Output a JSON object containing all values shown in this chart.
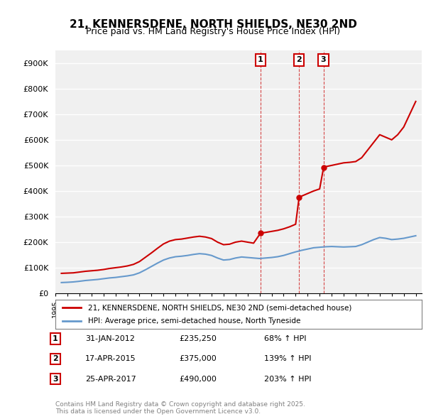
{
  "title": "21, KENNERSDENE, NORTH SHIELDS, NE30 2ND",
  "subtitle": "Price paid vs. HM Land Registry's House Price Index (HPI)",
  "xlabel": "",
  "ylabel": "",
  "ylim": [
    0,
    950000
  ],
  "yticks": [
    0,
    100000,
    200000,
    300000,
    400000,
    500000,
    600000,
    700000,
    800000,
    900000
  ],
  "ytick_labels": [
    "£0",
    "£100K",
    "£200K",
    "£300K",
    "£400K",
    "£500K",
    "£600K",
    "£700K",
    "£800K",
    "£900K"
  ],
  "xlim_start": 1995.0,
  "xlim_end": 2025.5,
  "background_color": "#ffffff",
  "plot_bg_color": "#f0f0f0",
  "grid_color": "#ffffff",
  "purchases": [
    {
      "num": 1,
      "date_label": "31-JAN-2012",
      "year": 2012.08,
      "price": 235250,
      "pct": "68%",
      "marker_y": 235250
    },
    {
      "num": 2,
      "date_label": "17-APR-2015",
      "year": 2015.29,
      "price": 375000,
      "pct": "139%",
      "marker_y": 375000
    },
    {
      "num": 3,
      "date_label": "25-APR-2017",
      "year": 2017.32,
      "price": 490000,
      "pct": "203%",
      "marker_y": 490000
    }
  ],
  "property_color": "#cc0000",
  "hpi_color": "#6699cc",
  "legend_property_label": "21, KENNERSDENE, NORTH SHIELDS, NE30 2ND (semi-detached house)",
  "legend_hpi_label": "HPI: Average price, semi-detached house, North Tyneside",
  "footnote": "Contains HM Land Registry data © Crown copyright and database right 2025.\nThis data is licensed under the Open Government Licence v3.0.",
  "hpi_data": {
    "years": [
      1995.5,
      1996.0,
      1996.5,
      1997.0,
      1997.5,
      1998.0,
      1998.5,
      1999.0,
      1999.5,
      2000.0,
      2000.5,
      2001.0,
      2001.5,
      2002.0,
      2002.5,
      2003.0,
      2003.5,
      2004.0,
      2004.5,
      2005.0,
      2005.5,
      2006.0,
      2006.5,
      2007.0,
      2007.5,
      2008.0,
      2008.5,
      2009.0,
      2009.5,
      2010.0,
      2010.5,
      2011.0,
      2011.5,
      2012.0,
      2012.5,
      2013.0,
      2013.5,
      2014.0,
      2014.5,
      2015.0,
      2015.5,
      2016.0,
      2016.5,
      2017.0,
      2017.5,
      2018.0,
      2018.5,
      2019.0,
      2019.5,
      2020.0,
      2020.5,
      2021.0,
      2021.5,
      2022.0,
      2022.5,
      2023.0,
      2023.5,
      2024.0,
      2024.5,
      2025.0
    ],
    "values": [
      42000,
      43000,
      44500,
      47000,
      50000,
      52000,
      54000,
      57000,
      60000,
      62000,
      65000,
      68000,
      72000,
      80000,
      92000,
      105000,
      118000,
      130000,
      138000,
      143000,
      145000,
      148000,
      152000,
      155000,
      153000,
      148000,
      138000,
      130000,
      132000,
      138000,
      142000,
      140000,
      138000,
      136000,
      138000,
      140000,
      143000,
      148000,
      155000,
      162000,
      168000,
      173000,
      178000,
      180000,
      182000,
      183000,
      182000,
      181000,
      182000,
      183000,
      190000,
      200000,
      210000,
      218000,
      215000,
      210000,
      212000,
      215000,
      220000,
      225000
    ]
  },
  "property_data": {
    "years": [
      1995.5,
      1996.0,
      1996.5,
      1997.0,
      1997.5,
      1998.0,
      1998.5,
      1999.0,
      1999.5,
      2000.0,
      2000.5,
      2001.0,
      2001.5,
      2002.0,
      2002.5,
      2003.0,
      2003.5,
      2004.0,
      2004.5,
      2005.0,
      2005.5,
      2006.0,
      2006.5,
      2007.0,
      2007.5,
      2008.0,
      2008.5,
      2009.0,
      2009.5,
      2010.0,
      2010.5,
      2011.0,
      2011.5,
      2012.08,
      2012.5,
      2013.0,
      2013.5,
      2014.0,
      2014.5,
      2015.0,
      2015.29,
      2015.5,
      2016.0,
      2016.5,
      2017.0,
      2017.32,
      2017.5,
      2018.0,
      2018.5,
      2019.0,
      2019.5,
      2020.0,
      2020.5,
      2021.0,
      2021.5,
      2022.0,
      2022.5,
      2023.0,
      2023.5,
      2024.0,
      2024.5,
      2025.0
    ],
    "values": [
      78000,
      79000,
      80000,
      83000,
      86000,
      88000,
      90000,
      93000,
      97000,
      100000,
      103000,
      107000,
      113000,
      124000,
      141000,
      158000,
      176000,
      193000,
      204000,
      210000,
      212000,
      216000,
      220000,
      223000,
      220000,
      214000,
      200000,
      190000,
      192000,
      200000,
      204000,
      200000,
      196000,
      235250,
      238000,
      242000,
      246000,
      252000,
      260000,
      270000,
      375000,
      380000,
      390000,
      400000,
      408000,
      490000,
      495000,
      500000,
      505000,
      510000,
      512000,
      515000,
      530000,
      560000,
      590000,
      620000,
      610000,
      600000,
      620000,
      650000,
      700000,
      750000
    ]
  }
}
